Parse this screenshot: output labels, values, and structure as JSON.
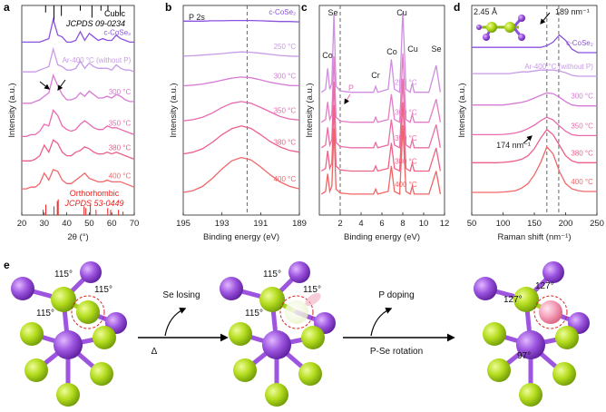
{
  "chart_data": [
    {
      "type": "line",
      "panel_label": "a",
      "xlabel": "2θ (°)",
      "ylabel": "Intensity (a.u.)",
      "xlim": [
        20,
        70
      ],
      "xticks": [
        20,
        30,
        40,
        50,
        60,
        70
      ],
      "ylim": [
        0,
        12
      ],
      "x": [
        20,
        22,
        24,
        26,
        28,
        30,
        32,
        34,
        36,
        38,
        40,
        42,
        44,
        46,
        48,
        50,
        52,
        54,
        56,
        58,
        60,
        62,
        64,
        66,
        68,
        70
      ],
      "series": [
        {
          "name": "c-CoSe₂",
          "color": "#8b52e0",
          "values": [
            9.9,
            9.9,
            9.9,
            9.9,
            9.9,
            10.0,
            10.1,
            11.2,
            10.3,
            10.2,
            9.9,
            9.9,
            10.0,
            10.5,
            10.0,
            10.4,
            10.2,
            10.0,
            10.1,
            10.0,
            10.0,
            10.3,
            10.1,
            10.0,
            9.9,
            9.9
          ]
        },
        {
          "name": "Ar-400 °C (without P)",
          "color": "#c79be6",
          "values": [
            8.2,
            8.2,
            8.2,
            8.2,
            8.3,
            8.4,
            8.5,
            9.5,
            8.6,
            8.5,
            8.3,
            8.3,
            8.4,
            8.8,
            8.4,
            8.7,
            8.5,
            8.4,
            8.4,
            8.4,
            8.3,
            8.6,
            8.4,
            8.3,
            8.3,
            8.2
          ]
        },
        {
          "name": "300 °C",
          "color": "#d77ad6",
          "values": [
            6.4,
            6.4,
            6.4,
            6.5,
            6.6,
            6.8,
            7.0,
            8.0,
            7.4,
            6.9,
            6.6,
            6.6,
            6.7,
            7.0,
            6.8,
            7.1,
            6.9,
            6.7,
            6.7,
            6.8,
            6.7,
            6.9,
            6.8,
            6.6,
            6.5,
            6.5
          ]
        },
        {
          "name": "350 °C",
          "color": "#e86bb0",
          "values": [
            4.5,
            4.5,
            4.6,
            4.6,
            4.8,
            5.2,
            5.1,
            6.0,
            5.7,
            5.1,
            4.9,
            4.8,
            4.9,
            5.2,
            5.4,
            5.2,
            5.0,
            4.9,
            4.9,
            5.1,
            5.0,
            5.0,
            4.9,
            4.8,
            4.7,
            4.6
          ]
        },
        {
          "name": "380 °C",
          "color": "#ec5f88",
          "values": [
            3.1,
            3.1,
            3.1,
            3.2,
            3.4,
            4.0,
            3.6,
            4.3,
            4.1,
            3.6,
            3.4,
            3.4,
            3.6,
            3.7,
            3.9,
            3.8,
            3.6,
            3.5,
            3.5,
            3.6,
            3.5,
            3.6,
            3.5,
            3.4,
            3.3,
            3.2
          ]
        },
        {
          "name": "400 °C",
          "color": "#f0686a",
          "values": [
            1.5,
            1.5,
            1.6,
            1.6,
            1.8,
            2.4,
            2.0,
            2.6,
            2.5,
            2.0,
            1.8,
            1.8,
            2.0,
            2.2,
            2.4,
            2.1,
            2.0,
            1.9,
            1.9,
            2.0,
            1.9,
            1.9,
            1.9,
            1.8,
            1.7,
            1.6
          ]
        }
      ],
      "references": [
        {
          "name": "Cubic",
          "source": "JCPDS 09-0234",
          "color": "#000000",
          "side": "top",
          "positions": [
            30.6,
            34.3,
            37.6,
            46.0,
            51.2,
            55.2,
            58.3,
            63.8
          ],
          "heights": [
            0.4,
            1.0,
            0.6,
            0.3,
            0.7,
            0.3,
            0.3,
            0.5
          ]
        },
        {
          "name": "Orthorhombic",
          "source": "JCPDS 53-0449",
          "color": "#e8201e",
          "side": "bottom",
          "positions": [
            29.5,
            30.7,
            34.3,
            35.8,
            36.2,
            47.7,
            48.5,
            50.5,
            53.0,
            58.2,
            59.5,
            63.0,
            65.0
          ],
          "heights": [
            0.3,
            0.6,
            0.5,
            0.8,
            0.9,
            0.5,
            0.4,
            0.6,
            0.3,
            0.4,
            0.3,
            0.3,
            0.2
          ]
        }
      ],
      "vlines": [],
      "annotations": []
    },
    {
      "type": "line",
      "panel_label": "b",
      "xlabel": "Binding energy (eV)",
      "ylabel": "Intensity (a.u.)",
      "xlim": [
        195,
        189
      ],
      "xticks": [
        195,
        193,
        191,
        189
      ],
      "ylim": [
        0,
        6
      ],
      "x": [
        195,
        194.5,
        194,
        193.5,
        193,
        192.5,
        192,
        191.5,
        191,
        190.5,
        190,
        189.5,
        189
      ],
      "series": [
        {
          "name": "c-CoSe₂",
          "color": "#8b52e0",
          "values": [
            5.55,
            5.55,
            5.55,
            5.56,
            5.56,
            5.57,
            5.57,
            5.57,
            5.56,
            5.55,
            5.54,
            5.54,
            5.53
          ]
        },
        {
          "name": "250 °C",
          "color": "#c79be6",
          "values": [
            4.55,
            4.56,
            4.58,
            4.6,
            4.62,
            4.65,
            4.67,
            4.66,
            4.63,
            4.6,
            4.57,
            4.55,
            4.54
          ]
        },
        {
          "name": "300 °C",
          "color": "#d77ad6",
          "values": [
            3.7,
            3.72,
            3.75,
            3.8,
            3.86,
            3.92,
            3.95,
            3.93,
            3.87,
            3.8,
            3.75,
            3.71,
            3.7
          ]
        },
        {
          "name": "350 °C",
          "color": "#e86bb0",
          "values": [
            2.7,
            2.73,
            2.8,
            2.92,
            3.08,
            3.2,
            3.25,
            3.2,
            3.08,
            2.95,
            2.82,
            2.75,
            2.72
          ]
        },
        {
          "name": "380 °C",
          "color": "#ec5f88",
          "values": [
            1.75,
            1.8,
            1.9,
            2.08,
            2.3,
            2.47,
            2.55,
            2.48,
            2.3,
            2.1,
            1.95,
            1.85,
            1.8
          ]
        },
        {
          "name": "400 °C",
          "color": "#f0686a",
          "values": [
            0.65,
            0.7,
            0.82,
            1.05,
            1.32,
            1.55,
            1.65,
            1.58,
            1.38,
            1.15,
            0.95,
            0.82,
            0.75
          ]
        }
      ],
      "references": [],
      "vlines": [
        191.7
      ],
      "annotations": [
        "P 2s"
      ]
    },
    {
      "type": "line",
      "panel_label": "c",
      "xlabel": "Binding energy (eV)",
      "ylabel": "Intensity (a.u.)",
      "xlim": [
        0,
        12
      ],
      "xticks": [
        2,
        4,
        6,
        8,
        10,
        12
      ],
      "ylim": [
        0,
        7
      ],
      "x": [
        0.2,
        0.6,
        0.8,
        1.0,
        1.2,
        1.4,
        1.6,
        2.0,
        3,
        4,
        5.2,
        5.4,
        5.6,
        6.6,
        6.9,
        7.2,
        7.7,
        8.0,
        8.3,
        8.7,
        8.9,
        9.1,
        10.5,
        11.2,
        11.6
      ],
      "series": [
        {
          "name": "250 °C",
          "color": "#cf8ee0",
          "values": [
            4.1,
            4.2,
            4.9,
            4.2,
            4.4,
            6.7,
            4.3,
            4.15,
            4.1,
            4.1,
            4.1,
            4.3,
            4.1,
            4.2,
            5.2,
            4.2,
            4.1,
            6.8,
            4.2,
            4.1,
            4.4,
            4.1,
            4.1,
            5.0,
            4.1
          ]
        },
        {
          "name": "300 °C",
          "color": "#e27ec6",
          "values": [
            3.1,
            3.19,
            3.78,
            3.19,
            3.36,
            5.3,
            3.27,
            3.14,
            3.1,
            3.1,
            3.1,
            3.27,
            3.1,
            3.19,
            4.04,
            3.19,
            3.1,
            5.4,
            3.19,
            3.1,
            3.36,
            3.1,
            3.1,
            3.87,
            3.1
          ]
        },
        {
          "name": "350 °C",
          "color": "#e96ea6",
          "values": [
            2.25,
            2.34,
            2.93,
            2.34,
            2.51,
            4.45,
            2.42,
            2.29,
            2.25,
            2.25,
            2.25,
            2.42,
            2.25,
            2.34,
            3.19,
            2.34,
            2.25,
            4.55,
            2.34,
            2.25,
            2.51,
            2.25,
            2.25,
            3.02,
            2.25
          ]
        },
        {
          "name": "380 °C",
          "color": "#ed6486",
          "values": [
            1.47,
            1.56,
            2.15,
            1.56,
            1.73,
            3.67,
            1.64,
            1.51,
            1.47,
            1.47,
            1.47,
            1.64,
            1.47,
            1.56,
            2.41,
            1.56,
            1.47,
            3.77,
            1.56,
            1.47,
            1.73,
            1.47,
            1.47,
            2.24,
            1.47
          ]
        },
        {
          "name": "400 °C",
          "color": "#f06464",
          "values": [
            0.7,
            0.79,
            1.38,
            0.79,
            0.96,
            2.9,
            0.87,
            0.74,
            0.7,
            0.7,
            0.7,
            0.87,
            0.7,
            0.79,
            1.64,
            0.79,
            0.7,
            3.0,
            0.79,
            0.7,
            0.96,
            0.7,
            0.7,
            1.47,
            0.7
          ]
        }
      ],
      "references": [],
      "vlines": [
        2.0
      ],
      "annotations": [
        "Se",
        "Co",
        "Cr",
        "Co",
        "Cu",
        "Cu",
        "Se",
        "P"
      ]
    },
    {
      "type": "line",
      "panel_label": "d",
      "xlabel": "Raman shift (nm⁻¹)",
      "ylabel": "Intensity (a.u.)",
      "xlim": [
        50,
        250
      ],
      "xticks": [
        50,
        100,
        150,
        200,
        250
      ],
      "ylim": [
        0,
        12
      ],
      "x": [
        50,
        60,
        70,
        80,
        90,
        100,
        110,
        120,
        130,
        140,
        150,
        160,
        170,
        180,
        190,
        200,
        210,
        220,
        230,
        240,
        250
      ],
      "series": [
        {
          "name": "c-CoSe₂",
          "color": "#8b52e0",
          "values": [
            9.6,
            9.6,
            9.6,
            9.6,
            9.6,
            9.6,
            9.6,
            9.6,
            9.6,
            9.6,
            9.6,
            9.6,
            9.7,
            9.9,
            10.3,
            10.0,
            9.5,
            9.3,
            9.3,
            9.3,
            9.3
          ]
        },
        {
          "name": "Ar-400 °C (without P)",
          "color": "#c79be6",
          "values": [
            8.1,
            8.1,
            8.1,
            8.1,
            8.1,
            8.1,
            8.1,
            8.15,
            8.2,
            8.2,
            8.25,
            8.3,
            8.3,
            8.3,
            8.25,
            8.15,
            8.0,
            7.95,
            7.95,
            7.95,
            7.95
          ]
        },
        {
          "name": "300 °C",
          "color": "#d77ad6",
          "values": [
            6.3,
            6.3,
            6.3,
            6.3,
            6.3,
            6.3,
            6.35,
            6.4,
            6.45,
            6.55,
            6.7,
            6.85,
            7.0,
            6.95,
            6.75,
            6.5,
            6.3,
            6.25,
            6.25,
            6.25,
            6.25
          ]
        },
        {
          "name": "350 °C",
          "color": "#e86bb0",
          "values": [
            4.6,
            4.6,
            4.6,
            4.6,
            4.6,
            4.62,
            4.65,
            4.7,
            4.8,
            4.95,
            5.15,
            5.4,
            5.6,
            5.45,
            5.1,
            4.8,
            4.6,
            4.55,
            4.55,
            4.55,
            4.55
          ]
        },
        {
          "name": "380 °C",
          "color": "#ec5f88",
          "values": [
            3.0,
            3.0,
            3.0,
            3.0,
            3.0,
            3.02,
            3.05,
            3.1,
            3.2,
            3.4,
            3.8,
            4.4,
            4.9,
            4.6,
            4.0,
            3.4,
            3.1,
            3.0,
            3.0,
            3.0,
            3.0
          ]
        },
        {
          "name": "400 °C",
          "color": "#f0686a",
          "values": [
            1.3,
            1.3,
            1.3,
            1.3,
            1.3,
            1.32,
            1.35,
            1.4,
            1.55,
            1.8,
            2.3,
            3.0,
            3.9,
            3.5,
            2.5,
            1.8,
            1.5,
            1.4,
            1.35,
            1.35,
            1.35
          ]
        }
      ],
      "references": [],
      "vlines": [
        170,
        189
      ],
      "annotations": [
        "2.45 Å",
        "189 nm⁻¹",
        "174 nm⁻¹"
      ]
    }
  ],
  "diagram": {
    "panel_label": "e",
    "structures": [
      {
        "angles": [
          "115°",
          "115°",
          "115°"
        ]
      },
      {
        "angles": [
          "115°",
          "115°",
          "115°"
        ]
      },
      {
        "angles": [
          "127°",
          "127°",
          "97°"
        ]
      }
    ],
    "steps": [
      {
        "label": "Se losing",
        "condition": "Δ"
      },
      {
        "label": "P doping",
        "condition": "P-Se rotation"
      }
    ]
  }
}
